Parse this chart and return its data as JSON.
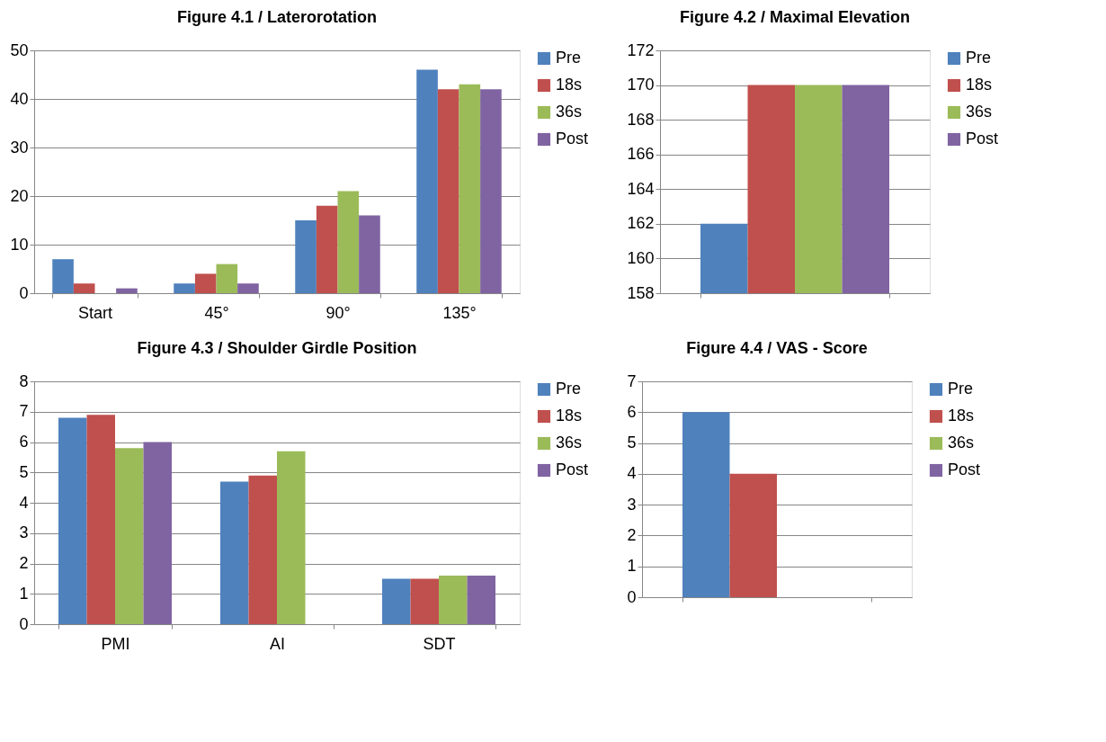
{
  "chart_data": [
    {
      "type": "bar",
      "title": "Figure 4.1 / Laterorotation",
      "categories": [
        "Start",
        "45°",
        "90°",
        "135°"
      ],
      "ylim": [
        0,
        50
      ],
      "yticks": [
        0,
        10,
        20,
        30,
        40,
        50
      ],
      "grid": "y",
      "legend": "right",
      "series": [
        {
          "name": "Pre",
          "color": "#4f81bd",
          "values": [
            7,
            2,
            15,
            46
          ]
        },
        {
          "name": "18s",
          "color": "#c0504d",
          "values": [
            2,
            4,
            18,
            42
          ]
        },
        {
          "name": "36s",
          "color": "#9bbb59",
          "values": [
            null,
            6,
            21,
            43
          ]
        },
        {
          "name": "Post",
          "color": "#8064a2",
          "values": [
            1,
            2,
            16,
            42
          ]
        }
      ]
    },
    {
      "type": "bar",
      "title": "Figure 4.2 / Maximal Elevation",
      "categories": [
        null
      ],
      "ylim": [
        158,
        172
      ],
      "yticks": [
        158,
        160,
        162,
        164,
        166,
        168,
        170,
        172
      ],
      "grid": "y",
      "legend": "right",
      "series": [
        {
          "name": "Pre",
          "color": "#4f81bd",
          "values": [
            162
          ]
        },
        {
          "name": "18s",
          "color": "#c0504d",
          "values": [
            170
          ]
        },
        {
          "name": "36s",
          "color": "#9bbb59",
          "values": [
            170
          ]
        },
        {
          "name": "Post",
          "color": "#8064a2",
          "values": [
            170
          ]
        }
      ]
    },
    {
      "type": "bar",
      "title": "Figure 4.3 / Shoulder Girdle Position",
      "categories": [
        "PMI",
        "AI",
        "SDT"
      ],
      "ylim": [
        0,
        8
      ],
      "yticks": [
        0,
        1,
        2,
        3,
        4,
        5,
        6,
        7,
        8
      ],
      "grid": "y",
      "legend": "right",
      "series": [
        {
          "name": "Pre",
          "color": "#4f81bd",
          "values": [
            6.8,
            4.7,
            1.5
          ]
        },
        {
          "name": "18s",
          "color": "#c0504d",
          "values": [
            6.9,
            4.9,
            1.5
          ]
        },
        {
          "name": "36s",
          "color": "#9bbb59",
          "values": [
            5.8,
            5.7,
            1.6
          ]
        },
        {
          "name": "Post",
          "color": "#8064a2",
          "values": [
            6.0,
            null,
            1.6
          ]
        }
      ]
    },
    {
      "type": "bar",
      "title": "Figure 4.4 / VAS - Score",
      "categories": [
        null
      ],
      "ylim": [
        0,
        7
      ],
      "yticks": [
        0,
        1,
        2,
        3,
        4,
        5,
        6,
        7
      ],
      "grid": "y",
      "legend": "right",
      "series": [
        {
          "name": "Pre",
          "color": "#4f81bd",
          "values": [
            6
          ]
        },
        {
          "name": "18s",
          "color": "#c0504d",
          "values": [
            4
          ]
        },
        {
          "name": "36s",
          "color": "#9bbb59",
          "values": [
            null
          ]
        },
        {
          "name": "Post",
          "color": "#8064a2",
          "values": [
            null
          ]
        }
      ]
    }
  ]
}
